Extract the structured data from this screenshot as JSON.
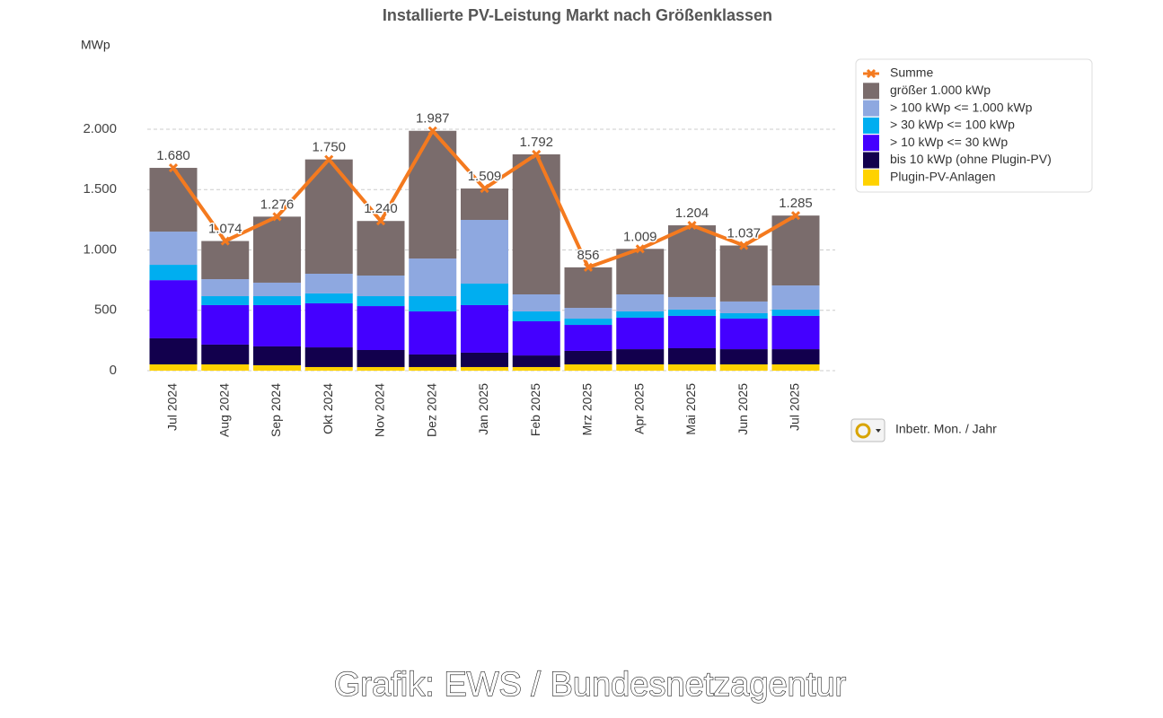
{
  "chart_data": {
    "type": "bar",
    "stacked": true,
    "title": "Installierte PV-Leistung Markt nach Größenklassen",
    "y_label": "MWp",
    "x_control_label": "Inbetr. Mon. / Jahr",
    "credit": "Grafik: EWS / Bundesnetzagentur",
    "categories": [
      "Jul 2024",
      "Aug 2024",
      "Sep 2024",
      "Okt 2024",
      "Nov 2024",
      "Dez 2024",
      "Jan 2025",
      "Feb 2025",
      "Mrz 2025",
      "Apr 2025",
      "Mai 2025",
      "Jun 2025",
      "Jul 2025"
    ],
    "series": [
      {
        "name": "Plugin-PV-Anlagen",
        "color": "#ffd200",
        "values": [
          52,
          52,
          45,
          30,
          30,
          30,
          30,
          30,
          52,
          52,
          52,
          52,
          52
        ]
      },
      {
        "name": "bis 10 kWp (ohne Plugin-PV)",
        "color": "#12004d",
        "values": [
          216,
          164,
          156,
          163,
          141,
          104,
          119,
          96,
          112,
          126,
          134,
          126,
          126
        ]
      },
      {
        "name": "> 10 kWp <= 30 kWp",
        "color": "#4400ff",
        "values": [
          482,
          327,
          342,
          365,
          364,
          357,
          394,
          283,
          215,
          261,
          268,
          253,
          276
        ]
      },
      {
        "name": "> 30 kWp <= 100 kWp",
        "color": "#00aef0",
        "values": [
          127,
          74,
          74,
          82,
          82,
          126,
          178,
          82,
          52,
          52,
          52,
          45,
          52
        ]
      },
      {
        "name": "> 100 kWp <= 1.000 kWp",
        "color": "#8ea8e0",
        "values": [
          275,
          141,
          112,
          163,
          171,
          312,
          528,
          141,
          89,
          141,
          104,
          97,
          200
        ]
      },
      {
        "name": "größer 1.000 kWp",
        "color": "#7a6c6c",
        "values": [
          528,
          316,
          547,
          947,
          452,
          1058,
          260,
          1160,
          336,
          377,
          594,
          464,
          579
        ]
      }
    ],
    "line": {
      "name": "Summe",
      "color": "#f47a1f",
      "values": [
        1680,
        1074,
        1276,
        1750,
        1240,
        1987,
        1509,
        1792,
        856,
        1009,
        1204,
        1037,
        1285
      ],
      "value_labels": [
        "1.680",
        "1.074",
        "1.276",
        "1.750",
        "1.240",
        "1.987",
        "1.509",
        "1.792",
        "856",
        "1.009",
        "1.204",
        "1.037",
        "1.285"
      ]
    },
    "ylim": [
      0,
      2000
    ],
    "yticks": [
      0,
      500,
      {
        "value": 1000,
        "label": "1.000"
      },
      {
        "value": 1500,
        "label": "1.500"
      },
      {
        "value": 2000,
        "label": "2.000"
      }
    ],
    "grid": true,
    "legend": "top-right"
  }
}
